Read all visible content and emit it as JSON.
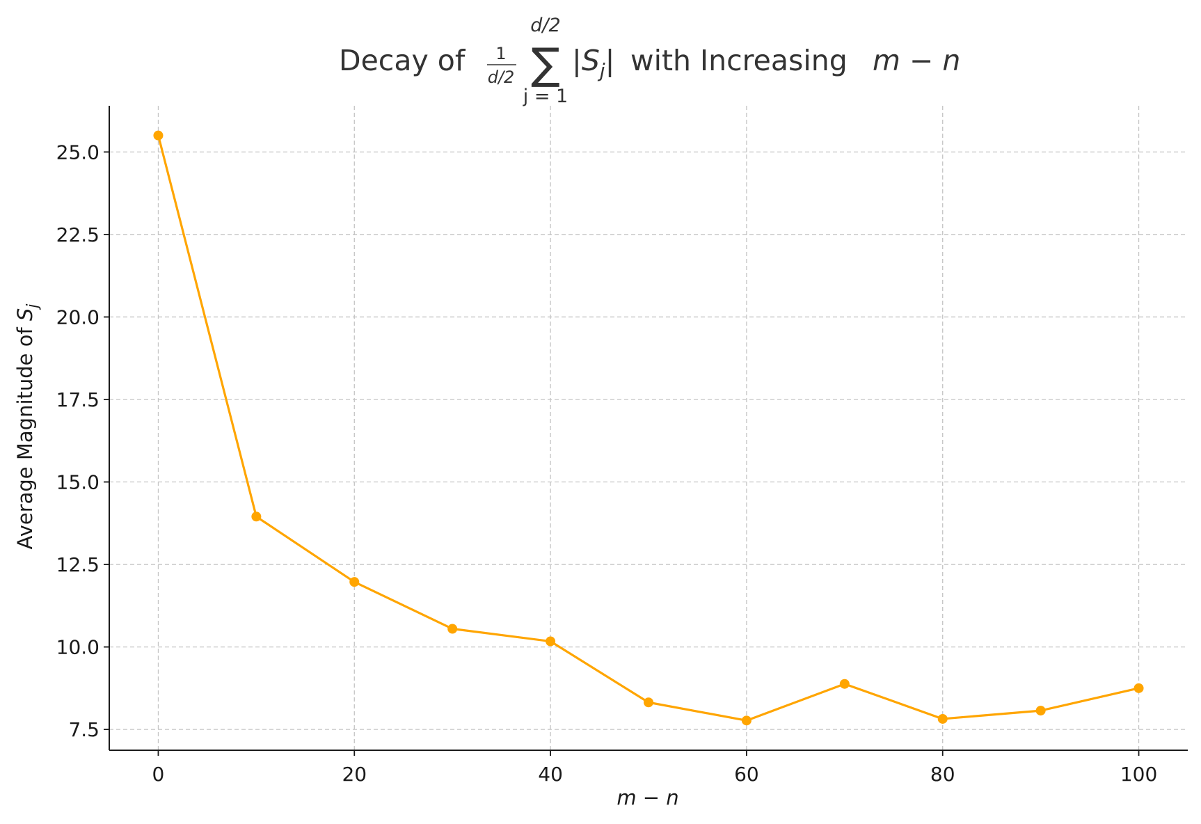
{
  "chart_data": {
    "type": "line",
    "title": {
      "prefix": "Decay of ",
      "frac_num": "1",
      "frac_den": "d/2",
      "sum_symbol": "∑",
      "sum_upper": "d/2",
      "sum_lower": "j = 1",
      "term": "|S",
      "term_sub": "j",
      "term_close": "|",
      "middle": " with Increasing ",
      "expr": "m − n"
    },
    "xlabel": "m − n",
    "ylabel": {
      "text": "Average Magnitude of ",
      "var": "S",
      "sub": "j"
    },
    "x": [
      0,
      10,
      20,
      30,
      40,
      50,
      60,
      70,
      80,
      90,
      100
    ],
    "series": [
      {
        "values": [
          25.5,
          13.95,
          11.97,
          10.55,
          10.17,
          8.32,
          7.77,
          8.88,
          7.82,
          8.07,
          8.75
        ]
      }
    ],
    "x_ticks": [
      0,
      20,
      40,
      60,
      80,
      100
    ],
    "y_ticks": [
      "7.5",
      "10.0",
      "12.5",
      "15.0",
      "17.5",
      "20.0",
      "22.5",
      "25.0"
    ],
    "xlim": [
      -5,
      105
    ],
    "ylim": [
      6.87,
      26.4
    ],
    "grid": true,
    "color": "#FFA500"
  }
}
